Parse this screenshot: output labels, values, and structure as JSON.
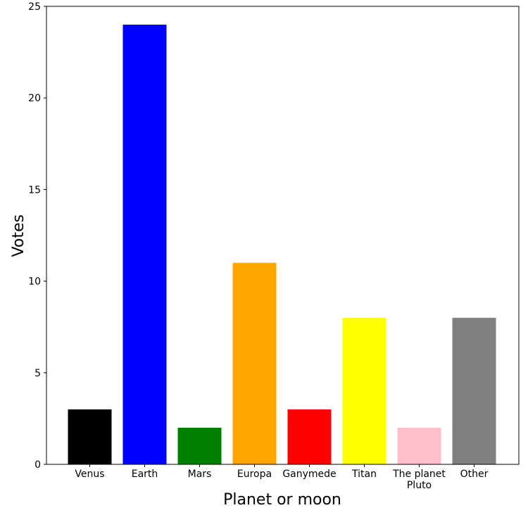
{
  "chart_data": {
    "type": "bar",
    "title": "",
    "xlabel": "Planet or moon",
    "ylabel": "Votes",
    "categories": [
      [
        "Venus"
      ],
      [
        "Earth"
      ],
      [
        "Mars"
      ],
      [
        "Europa"
      ],
      [
        "Ganymede"
      ],
      [
        "Titan"
      ],
      [
        "The planet",
        "Pluto"
      ],
      [
        "Other"
      ]
    ],
    "values": [
      3,
      24,
      2,
      11,
      3,
      8,
      2,
      8
    ],
    "colors": [
      "#000000",
      "#0000ff",
      "#008000",
      "#ffa500",
      "#ff0000",
      "#ffff00",
      "#ffc0cb",
      "#808080"
    ],
    "ylim": [
      0,
      25
    ],
    "yticks": [
      0,
      5,
      10,
      15,
      20,
      25
    ],
    "grid": false,
    "legend": false
  }
}
